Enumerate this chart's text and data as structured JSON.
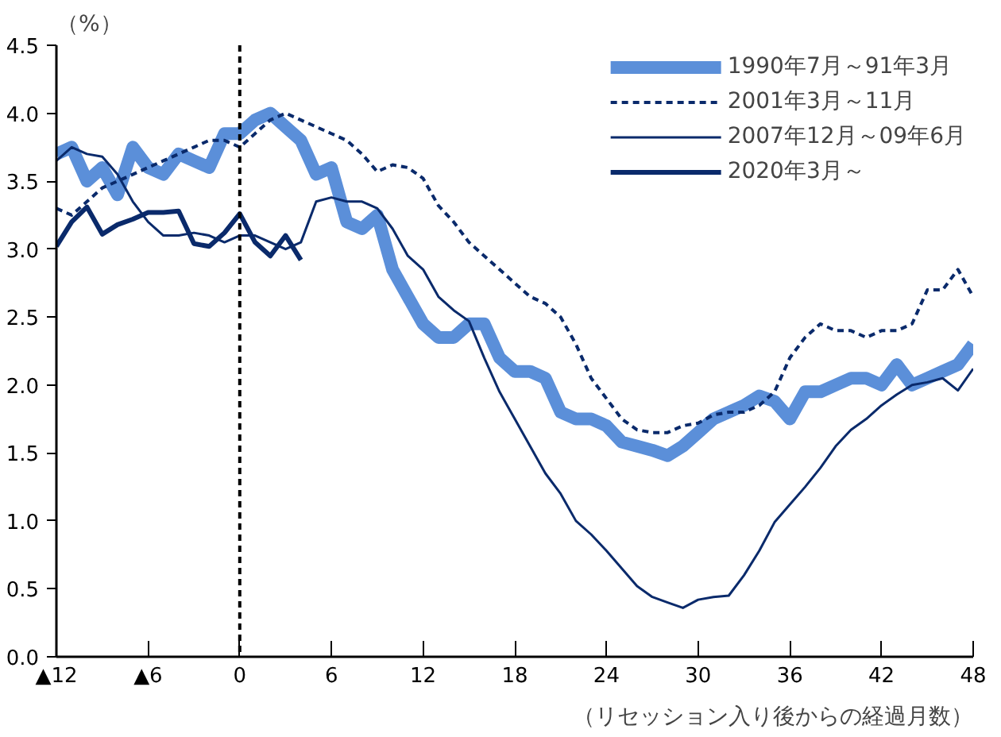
{
  "chart_data": {
    "type": "line",
    "ylabel": "（%）",
    "xlabel": "（リセッション入り後からの経過月数）",
    "x": [
      -12,
      -11,
      -10,
      -9,
      -8,
      -7,
      -6,
      -5,
      -4,
      -3,
      -2,
      -1,
      0,
      1,
      2,
      3,
      4,
      5,
      6,
      7,
      8,
      9,
      10,
      11,
      12,
      13,
      14,
      15,
      16,
      17,
      18,
      19,
      20,
      21,
      22,
      23,
      24,
      25,
      26,
      27,
      28,
      29,
      30,
      31,
      32,
      33,
      34,
      35,
      36,
      37,
      38,
      39,
      40,
      41,
      42,
      43,
      44,
      45,
      46,
      47,
      48
    ],
    "series": [
      {
        "name": "1990年7月～91年3月",
        "color": "#5b8fd9",
        "line_style": "solid",
        "values": [
          3.7,
          3.75,
          3.5,
          3.6,
          3.4,
          3.75,
          3.6,
          3.55,
          3.7,
          3.65,
          3.6,
          3.85,
          3.85,
          3.95,
          4.0,
          3.9,
          3.8,
          3.55,
          3.6,
          3.2,
          3.15,
          3.25,
          2.85,
          2.65,
          2.45,
          2.35,
          2.35,
          2.45,
          2.45,
          2.2,
          2.1,
          2.1,
          2.05,
          1.8,
          1.75,
          1.75,
          1.7,
          1.58,
          1.55,
          1.52,
          1.48,
          1.55,
          1.65,
          1.75,
          1.8,
          1.85,
          1.92,
          1.88,
          1.75,
          1.95,
          1.95,
          2.0,
          2.05,
          2.05,
          2.0,
          2.15,
          2.0,
          2.05,
          2.1,
          2.15,
          2.3
        ]
      },
      {
        "name": "2001年3月～11月",
        "color": "#0a2a6b",
        "line_style": "dashed",
        "values": [
          3.3,
          3.25,
          3.35,
          3.45,
          3.5,
          3.55,
          3.6,
          3.65,
          3.7,
          3.75,
          3.8,
          3.8,
          3.75,
          3.85,
          3.95,
          4.0,
          3.95,
          3.9,
          3.85,
          3.8,
          3.7,
          3.57,
          3.62,
          3.6,
          3.52,
          3.32,
          3.2,
          3.05,
          2.95,
          2.85,
          2.75,
          2.65,
          2.6,
          2.5,
          2.3,
          2.05,
          1.9,
          1.75,
          1.67,
          1.65,
          1.65,
          1.7,
          1.72,
          1.78,
          1.8,
          1.8,
          1.85,
          1.95,
          2.2,
          2.35,
          2.45,
          2.4,
          2.4,
          2.35,
          2.4,
          2.4,
          2.45,
          2.7,
          2.7,
          2.85,
          2.65
        ]
      },
      {
        "name": "2007年12月～09年6月",
        "color": "#0a2a6b",
        "line_style": "solid",
        "values": [
          3.65,
          3.75,
          3.7,
          3.68,
          3.55,
          3.35,
          3.2,
          3.1,
          3.1,
          3.12,
          3.1,
          3.05,
          3.1,
          3.1,
          3.05,
          3.0,
          3.05,
          3.35,
          3.38,
          3.35,
          3.35,
          3.3,
          3.15,
          2.95,
          2.85,
          2.65,
          2.55,
          2.47,
          2.2,
          1.95,
          1.75,
          1.55,
          1.35,
          1.2,
          1.0,
          0.9,
          0.78,
          0.65,
          0.52,
          0.44,
          0.4,
          0.36,
          0.42,
          0.44,
          0.45,
          0.6,
          0.78,
          0.99,
          1.12,
          1.25,
          1.39,
          1.55,
          1.67,
          1.75,
          1.85,
          1.93,
          2.0,
          2.02,
          2.05,
          1.96,
          2.12
        ]
      },
      {
        "name": "2020年3月～",
        "color": "#0a2a6b",
        "line_style": "solid",
        "values": [
          3.02,
          3.2,
          3.31,
          3.11,
          3.18,
          3.22,
          3.27,
          3.27,
          3.28,
          3.04,
          3.02,
          3.12,
          3.26,
          3.05,
          2.95,
          3.1,
          2.92,
          null,
          null,
          null,
          null,
          null,
          null,
          null,
          null,
          null,
          null,
          null,
          null,
          null,
          null,
          null,
          null,
          null,
          null,
          null,
          null,
          null,
          null,
          null,
          null,
          null,
          null,
          null,
          null,
          null,
          null,
          null,
          null,
          null,
          null,
          null,
          null,
          null,
          null,
          null,
          null,
          null,
          null,
          null,
          null
        ]
      }
    ],
    "xlim": [
      -12,
      48
    ],
    "xticks": [
      {
        "value": -12,
        "label": "▲12"
      },
      {
        "value": -6,
        "label": "▲6"
      },
      0,
      6,
      12,
      18,
      24,
      30,
      36,
      42,
      48
    ],
    "ylim": [
      0,
      4.5
    ],
    "yticks": [
      {
        "value": 0,
        "label": "0.0"
      },
      0.5,
      {
        "value": 1,
        "label": "1.0"
      },
      1.5,
      {
        "value": 2,
        "label": "2.0"
      },
      2.5,
      {
        "value": 3,
        "label": "3.0"
      },
      3.5,
      {
        "value": 4,
        "label": "4.0"
      },
      4.5
    ],
    "ref_lines": [
      {
        "axis": "x",
        "value": 0,
        "color": "#000000",
        "line_style": "dashed"
      }
    ],
    "legend": "top right",
    "grid": false
  }
}
